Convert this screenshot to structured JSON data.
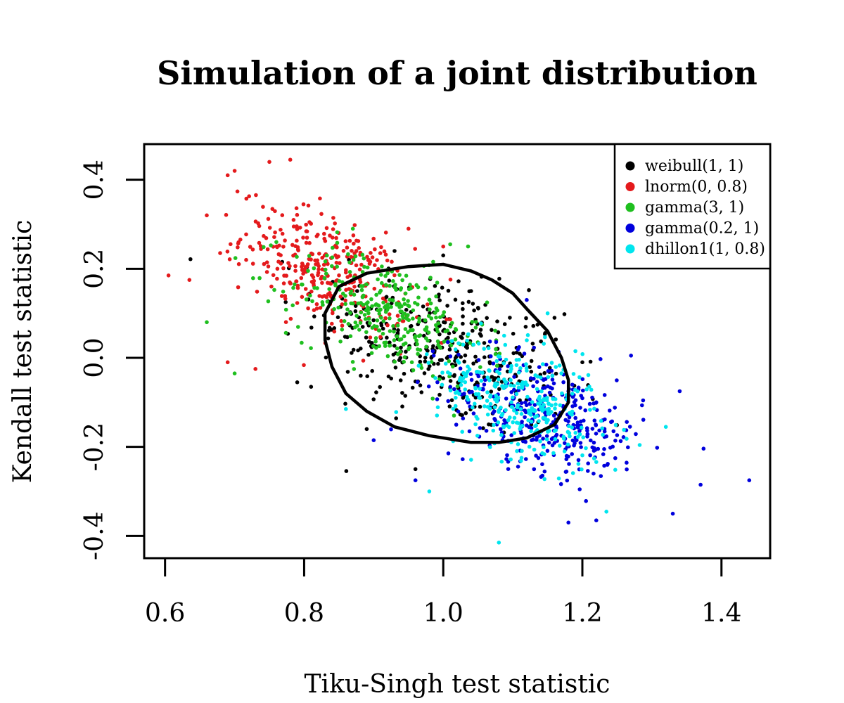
{
  "chart_data": {
    "type": "scatter",
    "title": "Simulation of a joint distribution",
    "xlabel": "Tiku-Singh test statistic",
    "ylabel": "Kendall test statistic",
    "xlim": [
      0.57,
      1.47
    ],
    "ylim": [
      -0.45,
      0.48
    ],
    "xticks": [
      0.6,
      0.8,
      1.0,
      1.2,
      1.4
    ],
    "xtick_labels": [
      "0.6",
      "0.8",
      "1.0",
      "1.2",
      "1.4"
    ],
    "yticks": [
      -0.4,
      -0.2,
      0.0,
      0.2,
      0.4
    ],
    "ytick_labels": [
      "-0.4",
      "-0.2",
      "0.0",
      "0.2",
      "0.4"
    ],
    "grid": false,
    "legend_position": "top-right",
    "series": [
      {
        "name": "weibull(1, 1)",
        "color": "#000000",
        "center": [
          1.0,
          0.02
        ],
        "sd": [
          0.09,
          0.09
        ],
        "corr": -0.45,
        "n": 350,
        "points": [
          [
            0.89,
            -0.16
          ],
          [
            0.96,
            -0.25
          ],
          [
            0.79,
            -0.055
          ],
          [
            0.81,
            -0.065
          ],
          [
            1.16,
            0.09
          ],
          [
            1.2,
            -0.01
          ],
          [
            0.93,
            0.24
          ],
          [
            1.0,
            0.23
          ],
          [
            1.04,
            0.15
          ]
        ]
      },
      {
        "name": "lnorm(0, 0.8)",
        "color": "#e41a1c",
        "center": [
          0.83,
          0.2
        ],
        "sd": [
          0.06,
          0.07
        ],
        "corr": -0.5,
        "n": 320,
        "points": [
          [
            0.605,
            0.185
          ],
          [
            0.635,
            0.175
          ],
          [
            0.75,
            0.44
          ],
          [
            0.78,
            0.445
          ],
          [
            0.69,
            0.41
          ],
          [
            0.7,
            0.42
          ],
          [
            0.66,
            0.32
          ],
          [
            0.69,
            -0.01
          ],
          [
            0.73,
            -0.025
          ],
          [
            0.95,
            0.29
          ],
          [
            1.0,
            0.25
          ]
        ]
      },
      {
        "name": "gamma(3, 1)",
        "color": "#1fbf1f",
        "center": [
          0.92,
          0.1
        ],
        "sd": [
          0.07,
          0.07
        ],
        "corr": -0.5,
        "n": 320,
        "points": [
          [
            0.66,
            0.08
          ],
          [
            0.7,
            -0.035
          ],
          [
            1.01,
            0.255
          ],
          [
            0.87,
            0.29
          ]
        ]
      },
      {
        "name": "gamma(0.2, 1)",
        "color": "#0000dd",
        "center": [
          1.15,
          -0.13
        ],
        "sd": [
          0.07,
          0.07
        ],
        "corr": -0.45,
        "n": 360,
        "points": [
          [
            1.44,
            -0.275
          ],
          [
            1.37,
            -0.285
          ],
          [
            1.33,
            -0.35
          ],
          [
            1.18,
            -0.37
          ],
          [
            1.22,
            -0.365
          ],
          [
            0.96,
            -0.275
          ],
          [
            0.9,
            -0.185
          ],
          [
            1.12,
            0.13
          ],
          [
            1.27,
            0.005
          ],
          [
            1.34,
            -0.075
          ]
        ]
      },
      {
        "name": "dhillon1(1, 0.8)",
        "color": "#00e5ee",
        "center": [
          1.11,
          -0.1
        ],
        "sd": [
          0.06,
          0.07
        ],
        "corr": -0.45,
        "n": 320,
        "points": [
          [
            1.08,
            -0.415
          ],
          [
            0.98,
            -0.3
          ],
          [
            1.32,
            -0.155
          ],
          [
            0.86,
            -0.115
          ],
          [
            1.15,
            0.1
          ],
          [
            1.19,
            0.015
          ]
        ]
      }
    ],
    "contour": {
      "color": "#000000",
      "points": [
        [
          0.85,
          0.16
        ],
        [
          0.89,
          0.19
        ],
        [
          0.95,
          0.205
        ],
        [
          1.0,
          0.21
        ],
        [
          1.04,
          0.195
        ],
        [
          1.07,
          0.175
        ],
        [
          1.1,
          0.145
        ],
        [
          1.12,
          0.11
        ],
        [
          1.15,
          0.06
        ],
        [
          1.17,
          0.0
        ],
        [
          1.18,
          -0.05
        ],
        [
          1.18,
          -0.1
        ],
        [
          1.16,
          -0.15
        ],
        [
          1.12,
          -0.18
        ],
        [
          1.08,
          -0.19
        ],
        [
          1.04,
          -0.19
        ],
        [
          0.98,
          -0.175
        ],
        [
          0.93,
          -0.155
        ],
        [
          0.89,
          -0.12
        ],
        [
          0.86,
          -0.08
        ],
        [
          0.84,
          -0.02
        ],
        [
          0.83,
          0.04
        ],
        [
          0.83,
          0.1
        ]
      ]
    }
  }
}
